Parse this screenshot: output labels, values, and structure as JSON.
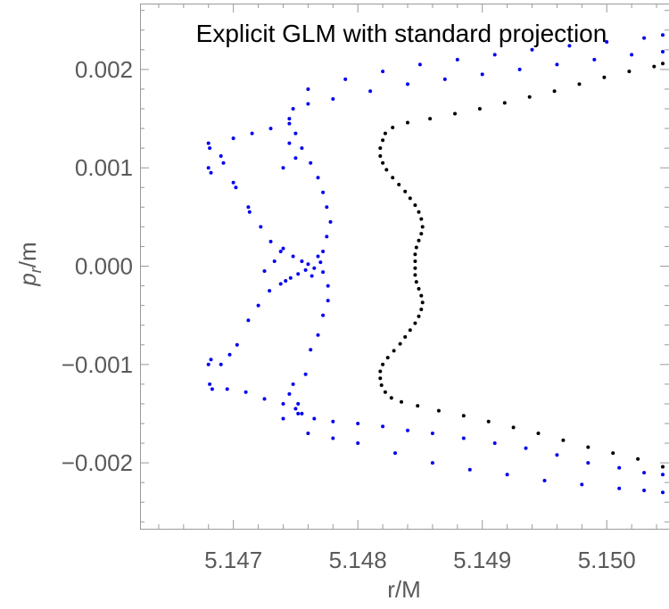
{
  "chart_data": {
    "type": "scatter",
    "title": "Explicit GLM with standard projection",
    "xlabel": "r/M",
    "ylabel": {
      "main": "p",
      "sub": "r",
      "suffix": "/m"
    },
    "xlim": [
      5.14625,
      5.1505
    ],
    "ylim": [
      -0.00267,
      0.00267
    ],
    "xticks": [
      {
        "value": 5.147,
        "label": "5.147"
      },
      {
        "value": 5.148,
        "label": "5.148"
      },
      {
        "value": 5.149,
        "label": "5.149"
      },
      {
        "value": 5.15,
        "label": "5.150"
      }
    ],
    "yticks": [
      {
        "value": 0.002,
        "label": "0.002"
      },
      {
        "value": 0.001,
        "label": "0.001"
      },
      {
        "value": 0.0,
        "label": "0.000"
      },
      {
        "value": -0.001,
        "label": "−0.001"
      },
      {
        "value": -0.002,
        "label": "−0.002"
      }
    ],
    "grid": false,
    "series": [
      {
        "color": "#0000ee",
        "points": [
          [
            5.1468,
            0.00125
          ],
          [
            5.14681,
            0.0012
          ],
          [
            5.1468,
            0.001
          ],
          [
            5.14682,
            0.00095
          ],
          [
            5.1469,
            0.00112
          ],
          [
            5.14692,
            0.00105
          ],
          [
            5.147,
            0.00085
          ],
          [
            5.14702,
            0.0008
          ],
          [
            5.14712,
            0.0006
          ],
          [
            5.14713,
            0.00055
          ],
          [
            5.14722,
            0.0004
          ],
          [
            5.1473,
            0.00025
          ],
          [
            5.1474,
            0.00018
          ],
          [
            5.14748,
            0.0001
          ],
          [
            5.14755,
            5e-05
          ],
          [
            5.1476,
            2e-05
          ],
          [
            5.14765,
            -2e-05
          ],
          [
            5.1477,
            4e-05
          ],
          [
            5.14772,
            -6e-05
          ],
          [
            5.14768,
            0.0001
          ],
          [
            5.14763,
            -0.0001
          ],
          [
            5.14758,
            -4e-05
          ],
          [
            5.14752,
            -8e-05
          ],
          [
            5.14746,
            -0.00012
          ],
          [
            5.14738,
            -0.00018
          ],
          [
            5.14729,
            -0.00025
          ],
          [
            5.1472,
            -0.0004
          ],
          [
            5.14712,
            -0.00055
          ],
          [
            5.14703,
            -0.0008
          ],
          [
            5.14697,
            -0.0009
          ],
          [
            5.1469,
            -0.001
          ],
          [
            5.14682,
            -0.00095
          ],
          [
            5.1468,
            -0.001
          ],
          [
            5.14681,
            -0.0012
          ],
          [
            5.14683,
            -0.00125
          ],
          [
            5.14695,
            -0.00125
          ],
          [
            5.1471,
            -0.00128
          ],
          [
            5.14725,
            -0.00135
          ],
          [
            5.1474,
            -0.0014
          ],
          [
            5.1475,
            -0.00145
          ],
          [
            5.14755,
            -0.0015
          ],
          [
            5.14765,
            -0.00155
          ],
          [
            5.1478,
            -0.00158
          ],
          [
            5.148,
            -0.0016
          ],
          [
            5.1482,
            -0.00163
          ],
          [
            5.1484,
            -0.00167
          ],
          [
            5.1486,
            -0.0017
          ],
          [
            5.14885,
            -0.00175
          ],
          [
            5.1491,
            -0.0018
          ],
          [
            5.14935,
            -0.00185
          ],
          [
            5.1496,
            -0.00192
          ],
          [
            5.14985,
            -0.002
          ],
          [
            5.1501,
            -0.00205
          ],
          [
            5.1503,
            -0.0021
          ],
          [
            5.15045,
            -0.00212
          ],
          [
            5.1476,
            -0.0017
          ],
          [
            5.1478,
            -0.00175
          ],
          [
            5.148,
            -0.0018
          ],
          [
            5.1483,
            -0.0019
          ],
          [
            5.1486,
            -0.002
          ],
          [
            5.1489,
            -0.00207
          ],
          [
            5.1492,
            -0.00212
          ],
          [
            5.1495,
            -0.00218
          ],
          [
            5.1498,
            -0.00222
          ],
          [
            5.1501,
            -0.00226
          ],
          [
            5.1503,
            -0.00228
          ],
          [
            5.15045,
            -0.0023
          ],
          [
            5.1474,
            -0.00155
          ],
          [
            5.14745,
            -0.0013
          ],
          [
            5.14748,
            -0.0012
          ],
          [
            5.14752,
            -0.0014
          ],
          [
            5.14758,
            -0.0011
          ],
          [
            5.14762,
            -0.00085
          ],
          [
            5.14768,
            -0.0007
          ],
          [
            5.14772,
            -0.0005
          ],
          [
            5.14776,
            -0.00035
          ],
          [
            5.14776,
            -0.0002
          ],
          [
            5.14772,
            0.00015
          ],
          [
            5.14775,
            0.0003
          ],
          [
            5.14778,
            0.00045
          ],
          [
            5.14775,
            0.0006
          ],
          [
            5.14772,
            0.00075
          ],
          [
            5.14768,
            0.0009
          ],
          [
            5.14762,
            0.00105
          ],
          [
            5.14755,
            0.0012
          ],
          [
            5.1475,
            0.00135
          ],
          [
            5.14745,
            0.0015
          ],
          [
            5.14748,
            0.0016
          ],
          [
            5.1476,
            0.00165
          ],
          [
            5.1478,
            0.0017
          ],
          [
            5.1481,
            0.00178
          ],
          [
            5.1484,
            0.00185
          ],
          [
            5.1487,
            0.0019
          ],
          [
            5.149,
            0.00195
          ],
          [
            5.1493,
            0.002
          ],
          [
            5.1496,
            0.00205
          ],
          [
            5.1499,
            0.0021
          ],
          [
            5.1502,
            0.00215
          ],
          [
            5.15045,
            0.00218
          ],
          [
            5.147,
            0.0013
          ],
          [
            5.14715,
            0.00135
          ],
          [
            5.1473,
            0.0014
          ],
          [
            5.14745,
            0.00145
          ],
          [
            5.1476,
            0.0018
          ],
          [
            5.1479,
            0.0019
          ],
          [
            5.1482,
            0.00198
          ],
          [
            5.1485,
            0.00205
          ],
          [
            5.1488,
            0.0021
          ],
          [
            5.1491,
            0.00215
          ],
          [
            5.1494,
            0.0022
          ],
          [
            5.1497,
            0.00224
          ],
          [
            5.15,
            0.00228
          ],
          [
            5.1503,
            0.00232
          ],
          [
            5.15045,
            0.00235
          ],
          [
            5.14745,
            0.00125
          ],
          [
            5.1475,
            0.0011
          ],
          [
            5.1474,
            0.001
          ],
          [
            5.14752,
            -0.0015
          ],
          [
            5.14738,
            0.00015
          ],
          [
            5.14742,
            -0.00015
          ],
          [
            5.14733,
            5e-05
          ],
          [
            5.14725,
            -5e-05
          ]
        ]
      },
      {
        "color": "#000000",
        "points": [
          [
            5.14822,
            0.00135
          ],
          [
            5.1482,
            0.00128
          ],
          [
            5.14818,
            0.0012
          ],
          [
            5.14818,
            0.00112
          ],
          [
            5.1482,
            0.00105
          ],
          [
            5.14823,
            0.00098
          ],
          [
            5.14828,
            0.0009
          ],
          [
            5.14833,
            0.00083
          ],
          [
            5.14838,
            0.00076
          ],
          [
            5.14842,
            0.00069
          ],
          [
            5.14846,
            0.00062
          ],
          [
            5.14849,
            0.00055
          ],
          [
            5.14851,
            0.00048
          ],
          [
            5.14852,
            0.0004
          ],
          [
            5.14851,
            0.00033
          ],
          [
            5.14849,
            0.00026
          ],
          [
            5.14847,
            0.00019
          ],
          [
            5.14846,
            0.00012
          ],
          [
            5.14846,
            5e-05
          ],
          [
            5.14846,
            -2e-05
          ],
          [
            5.14846,
            -9e-05
          ],
          [
            5.14847,
            -0.00016
          ],
          [
            5.14849,
            -0.00023
          ],
          [
            5.14851,
            -0.0003
          ],
          [
            5.14852,
            -0.00037
          ],
          [
            5.14851,
            -0.00044
          ],
          [
            5.14849,
            -0.00051
          ],
          [
            5.14846,
            -0.00058
          ],
          [
            5.14842,
            -0.00065
          ],
          [
            5.14838,
            -0.00072
          ],
          [
            5.14834,
            -0.00079
          ],
          [
            5.14829,
            -0.00086
          ],
          [
            5.14824,
            -0.00093
          ],
          [
            5.1482,
            -0.001
          ],
          [
            5.14818,
            -0.00107
          ],
          [
            5.14818,
            -0.00114
          ],
          [
            5.14819,
            -0.00121
          ],
          [
            5.14822,
            -0.00128
          ],
          [
            5.14827,
            -0.00134
          ],
          [
            5.14835,
            -0.00138
          ],
          [
            5.14848,
            -0.00142
          ],
          [
            5.14865,
            -0.00147
          ],
          [
            5.14885,
            -0.00152
          ],
          [
            5.14905,
            -0.00158
          ],
          [
            5.14925,
            -0.00164
          ],
          [
            5.14945,
            -0.0017
          ],
          [
            5.14965,
            -0.00177
          ],
          [
            5.14985,
            -0.00184
          ],
          [
            5.15005,
            -0.0019
          ],
          [
            5.15025,
            -0.00196
          ],
          [
            5.15045,
            -0.00204
          ],
          [
            5.14828,
            0.00141
          ],
          [
            5.1484,
            0.00146
          ],
          [
            5.14858,
            0.0015
          ],
          [
            5.14878,
            0.00155
          ],
          [
            5.14898,
            0.0016
          ],
          [
            5.14918,
            0.00166
          ],
          [
            5.14938,
            0.00172
          ],
          [
            5.14958,
            0.00178
          ],
          [
            5.14978,
            0.00185
          ],
          [
            5.14998,
            0.00192
          ],
          [
            5.15018,
            0.00198
          ],
          [
            5.15038,
            0.00203
          ],
          [
            5.15045,
            0.00206
          ]
        ]
      }
    ]
  }
}
